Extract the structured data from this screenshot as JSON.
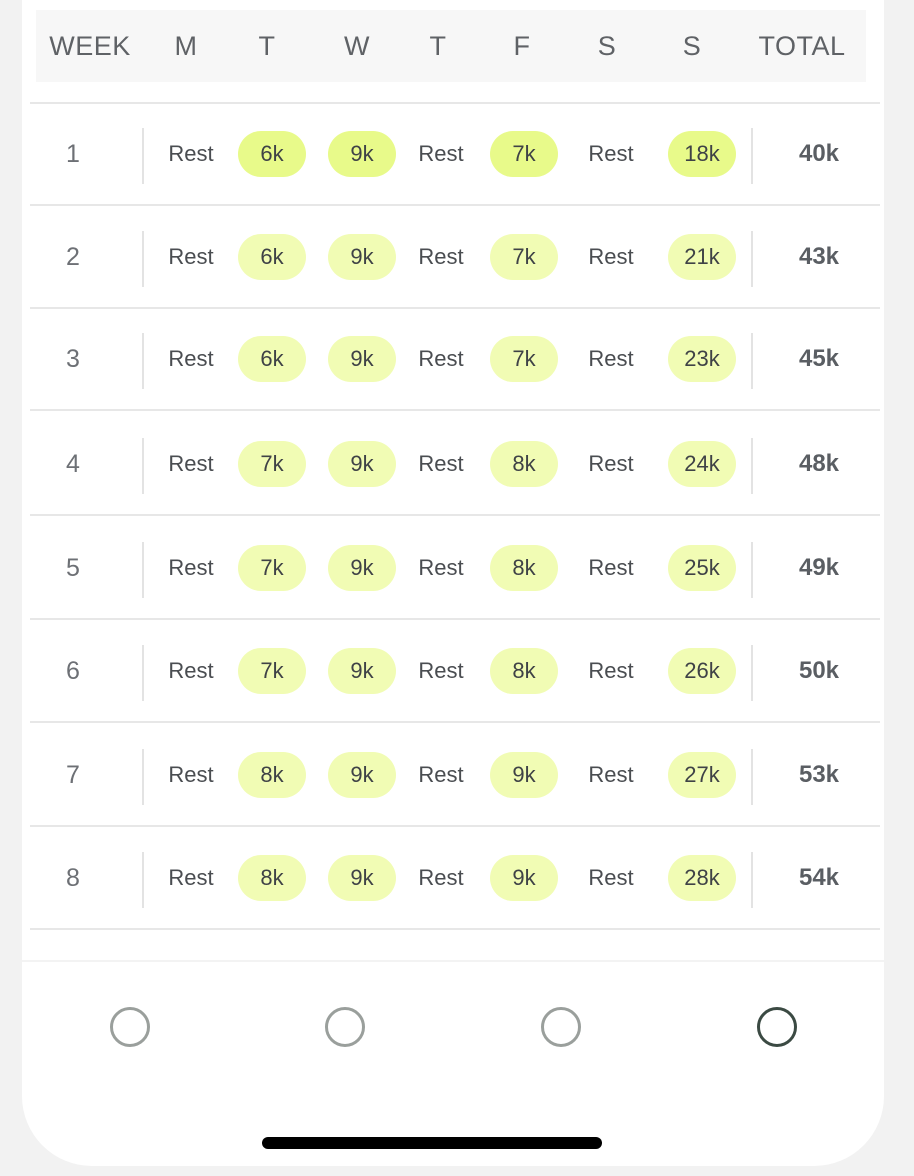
{
  "header": {
    "columns": [
      "WEEK",
      "M",
      "T",
      "W",
      "T",
      "F",
      "S",
      "S",
      "TOTAL"
    ]
  },
  "weeks": [
    {
      "week": "1",
      "days": [
        "Rest",
        "6k",
        "9k",
        "Rest",
        "7k",
        "Rest",
        "18k"
      ],
      "total": "40k"
    },
    {
      "week": "2",
      "days": [
        "Rest",
        "6k",
        "9k",
        "Rest",
        "7k",
        "Rest",
        "21k"
      ],
      "total": "43k"
    },
    {
      "week": "3",
      "days": [
        "Rest",
        "6k",
        "9k",
        "Rest",
        "7k",
        "Rest",
        "23k"
      ],
      "total": "45k"
    },
    {
      "week": "4",
      "days": [
        "Rest",
        "7k",
        "9k",
        "Rest",
        "8k",
        "Rest",
        "24k"
      ],
      "total": "48k"
    },
    {
      "week": "5",
      "days": [
        "Rest",
        "7k",
        "9k",
        "Rest",
        "8k",
        "Rest",
        "25k"
      ],
      "total": "49k"
    },
    {
      "week": "6",
      "days": [
        "Rest",
        "7k",
        "9k",
        "Rest",
        "8k",
        "Rest",
        "26k"
      ],
      "total": "50k"
    },
    {
      "week": "7",
      "days": [
        "Rest",
        "8k",
        "9k",
        "Rest",
        "9k",
        "Rest",
        "27k"
      ],
      "total": "53k"
    },
    {
      "week": "8",
      "days": [
        "Rest",
        "8k",
        "9k",
        "Rest",
        "9k",
        "Rest",
        "28k"
      ],
      "total": "54k"
    }
  ],
  "colors": {
    "pill_highlight": "#e8fa8a",
    "pill_light": "#f1fcb4",
    "nav_inactive": "#9a9f9c",
    "nav_active": "#3b4a43"
  },
  "bottom_nav": {
    "items": [
      {
        "icon": "circle-icon",
        "active": false
      },
      {
        "icon": "circle-icon",
        "active": false
      },
      {
        "icon": "circle-icon",
        "active": false
      },
      {
        "icon": "circle-icon",
        "active": true
      }
    ]
  }
}
